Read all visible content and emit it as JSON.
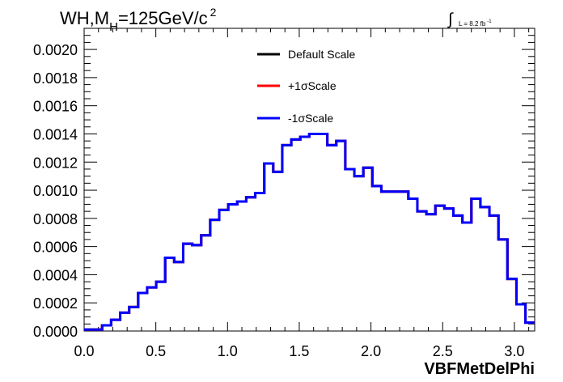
{
  "chart_data": {
    "type": "line",
    "title_main": "WH,M",
    "title_sub": "H",
    "title_rest": "=125GeV/c",
    "title_sup": "2",
    "lumi_symbol": "∫",
    "lumi_text": "L = 8.2 fb",
    "lumi_sup": "-1",
    "xlabel": "VBFMetDelPhi",
    "ylabel": "",
    "xlim": [
      0.0,
      3.1416
    ],
    "ylim": [
      0.0,
      0.00215
    ],
    "xticks": [
      0.0,
      0.5,
      1.0,
      1.5,
      2.0,
      2.5,
      3.0
    ],
    "xtick_labels": [
      "0.0",
      "0.5",
      "1.0",
      "1.5",
      "2.0",
      "2.5",
      "3.0"
    ],
    "yticks": [
      0.0,
      0.0002,
      0.0004,
      0.0006,
      0.0008,
      0.001,
      0.0012,
      0.0014,
      0.0016,
      0.0018,
      0.002
    ],
    "ytick_labels": [
      "0.0000",
      "0.0002",
      "0.0004",
      "0.0006",
      "0.0008",
      "0.0010",
      "0.0012",
      "0.0014",
      "0.0016",
      "0.0018",
      "0.0020"
    ],
    "bin_width": 0.0628,
    "bin_values": [
      1e-05,
      1e-05,
      4e-05,
      8e-05,
      0.00013,
      0.00017,
      0.00027,
      0.00031,
      0.00035,
      0.00052,
      0.00049,
      0.00062,
      0.00061,
      0.00068,
      0.00079,
      0.00086,
      0.0009,
      0.00092,
      0.00095,
      0.00098,
      0.00119,
      0.00113,
      0.00132,
      0.00136,
      0.00138,
      0.0014,
      0.0014,
      0.00132,
      0.00135,
      0.00115,
      0.0011,
      0.00116,
      0.00103,
      0.00099,
      0.00099,
      0.00099,
      0.00094,
      0.00085,
      0.00083,
      0.00089,
      0.00087,
      0.00082,
      0.00077,
      0.00094,
      0.00088,
      0.00082,
      0.00065,
      0.00037,
      0.00019,
      6e-05
    ],
    "series": [
      {
        "name": "Default Scale",
        "color": "#000000"
      },
      {
        "name": "+1σScale",
        "color": "#ff0000"
      },
      {
        "name": "-1σScale",
        "color": "#0000ff"
      }
    ],
    "legend_position": "top-center",
    "grid": false
  }
}
